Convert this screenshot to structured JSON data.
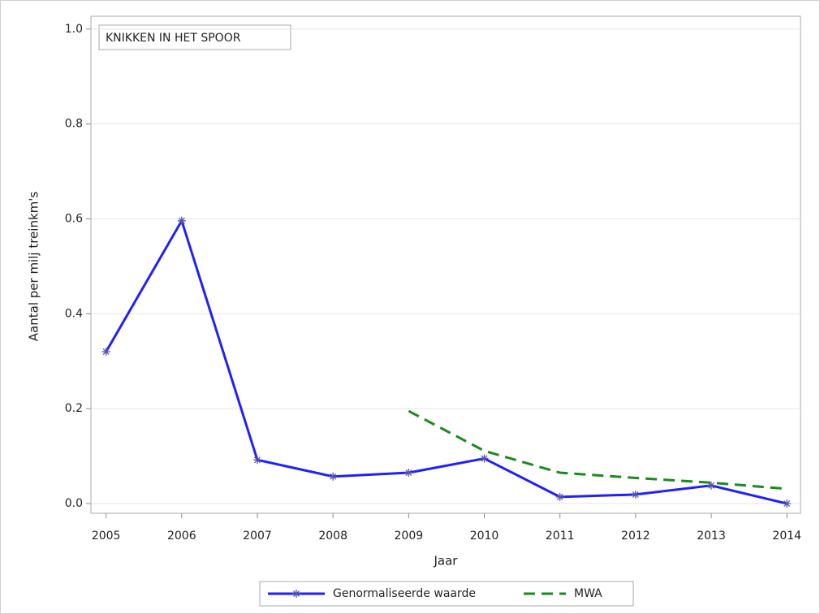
{
  "chart_data": {
    "type": "line",
    "annotation": "KNIKKEN IN HET SPOOR",
    "x_label": "Jaar",
    "y_label": "Aantal per milj treinkm's",
    "x": [
      2005,
      2006,
      2007,
      2008,
      2009,
      2010,
      2011,
      2012,
      2013,
      2014
    ],
    "series": [
      {
        "name": "Genormaliseerde waarde",
        "color": "#1f1fff",
        "line_style": "solid",
        "marker": "asterisk",
        "values": [
          0.32,
          0.596,
          0.092,
          0.057,
          0.065,
          0.095,
          0.014,
          0.019,
          0.038,
          0.0
        ]
      },
      {
        "name": "MWA",
        "color": "#1a8a1a",
        "line_style": "dashed",
        "values": [
          null,
          null,
          null,
          null,
          0.195,
          0.111,
          0.065,
          0.054,
          0.044,
          0.031
        ]
      }
    ],
    "xlim": [
      2004.8,
      2014.18
    ],
    "xticks": [
      2005,
      2006,
      2007,
      2008,
      2009,
      2010,
      2011,
      2012,
      2013,
      2014
    ],
    "ylim": [
      -0.0205,
      1.027
    ],
    "yticks": [
      {
        "value": 0,
        "label": "0.0"
      },
      0.2,
      0.4,
      0.6,
      0.8,
      {
        "value": 1,
        "label": "1.0"
      }
    ],
    "grid": true,
    "legend": "bottom"
  }
}
